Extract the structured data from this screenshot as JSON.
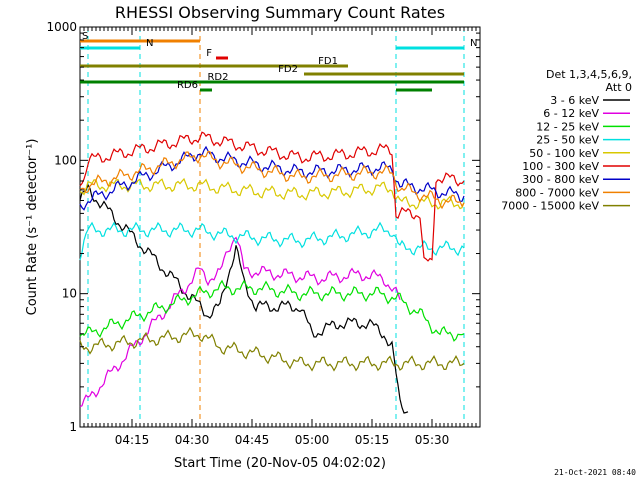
{
  "chart_data": {
    "type": "line",
    "title": "RHESSI Observing Summary Count Rates",
    "xlabel": "Start Time (20-Nov-05 04:02:02)",
    "ylabel": "Count Rate (s⁻¹ detector⁻¹)",
    "yscale": "log",
    "xlim_minutes": [
      0,
      100
    ],
    "ylim": [
      1,
      1000
    ],
    "x_ticks": [
      {
        "label": "04:15",
        "minute": 13
      },
      {
        "label": "04:30",
        "minute": 28
      },
      {
        "label": "04:45",
        "minute": 43
      },
      {
        "label": "05:00",
        "minute": 58
      },
      {
        "label": "05:15",
        "minute": 73
      },
      {
        "label": "05:30",
        "minute": 88
      }
    ],
    "y_ticks": [
      {
        "label": "1",
        "value": 1
      },
      {
        "label": "10",
        "value": 10
      },
      {
        "label": "100",
        "value": 100
      },
      {
        "label": "1000",
        "value": 1000
      }
    ],
    "legend": {
      "position": "right",
      "header": [
        "Det 1,3,4,5,6,9,",
        "Att 0"
      ],
      "entries": [
        {
          "label": "3 - 6 keV",
          "color": "#000000"
        },
        {
          "label": "6 - 12 keV",
          "color": "#e000e0"
        },
        {
          "label": "12 - 25 keV",
          "color": "#00e000"
        },
        {
          "label": "25 - 50 keV",
          "color": "#00e0e0"
        },
        {
          "label": "50 - 100 keV",
          "color": "#d8c800"
        },
        {
          "label": "100 - 300 keV",
          "color": "#e00000"
        },
        {
          "label": "300 - 800 keV",
          "color": "#0000c8"
        },
        {
          "label": "800 - 7000 keV",
          "color": "#f08000"
        },
        {
          "label": "7000 - 15000 keV",
          "color": "#808000"
        }
      ]
    },
    "state_bars": [
      {
        "label": "S",
        "color": "#f08000",
        "x_start": 0,
        "x_end": 30,
        "level": 1
      },
      {
        "label": "N",
        "color": "#00e0e0",
        "x_start": 0,
        "x_end": 15,
        "level": 2
      },
      {
        "label": "N",
        "color": "#00e0e0",
        "x_start": 79,
        "x_end": 96,
        "level": 2
      },
      {
        "label": "F",
        "color": "#e00000",
        "x_start": 34,
        "x_end": 37,
        "level": 3
      },
      {
        "label": "FD1",
        "color": "#808000",
        "x_start": 0,
        "x_end": 67,
        "level": 4
      },
      {
        "label": "FD2",
        "color": "#808000",
        "x_start": 56,
        "x_end": 96,
        "level": 5
      },
      {
        "label": "RD2",
        "color": "#008000",
        "x_start": 0,
        "x_end": 96,
        "level": 6
      },
      {
        "label": "RD6",
        "color": "#008000",
        "x_start": 30,
        "x_end": 33,
        "level": 7
      },
      {
        "label": "",
        "color": "#008000",
        "x_start": 79,
        "x_end": 88,
        "level": 7
      }
    ],
    "vlines": [
      {
        "minute": 2,
        "color": "#00e0e0",
        "style": "dashed"
      },
      {
        "minute": 15,
        "color": "#00e0e0",
        "style": "dashed"
      },
      {
        "minute": 30,
        "color": "#f08000",
        "style": "dashed"
      },
      {
        "minute": 79,
        "color": "#00e0e0",
        "style": "dashed"
      },
      {
        "minute": 96,
        "color": "#00e0e0",
        "style": "dashed"
      }
    ],
    "series": [
      {
        "name": "3 - 6 keV",
        "color": "#000000",
        "points": [
          [
            0,
            50
          ],
          [
            1,
            55
          ],
          [
            2,
            60
          ],
          [
            30,
            8
          ],
          [
            32,
            7
          ],
          [
            35,
            8
          ],
          [
            37,
            14
          ],
          [
            39,
            22
          ],
          [
            41,
            12
          ],
          [
            44,
            8
          ],
          [
            55,
            8
          ],
          [
            58,
            5
          ],
          [
            65,
            6
          ],
          [
            72,
            6
          ],
          [
            76,
            5
          ],
          [
            78,
            4
          ],
          [
            80,
            1.5
          ],
          [
            82,
            1.3
          ]
        ]
      },
      {
        "name": "6 - 12 keV",
        "color": "#e000e0",
        "points": [
          [
            0,
            1.5
          ],
          [
            1,
            1.5
          ],
          [
            2,
            1.6
          ],
          [
            30,
            15
          ],
          [
            32,
            13
          ],
          [
            35,
            14
          ],
          [
            37,
            22
          ],
          [
            39,
            28
          ],
          [
            41,
            15
          ],
          [
            50,
            14
          ],
          [
            60,
            13
          ],
          [
            70,
            14
          ],
          [
            76,
            13
          ],
          [
            78,
            11
          ],
          [
            80,
            9
          ]
        ]
      },
      {
        "name": "12 - 25 keV",
        "color": "#00e000",
        "points": [
          [
            0,
            5
          ],
          [
            1,
            5
          ],
          [
            2,
            5
          ],
          [
            30,
            10
          ],
          [
            35,
            11
          ],
          [
            45,
            11
          ],
          [
            55,
            10
          ],
          [
            65,
            10
          ],
          [
            75,
            10
          ],
          [
            80,
            9
          ],
          [
            85,
            7
          ],
          [
            90,
            5
          ],
          [
            96,
            5
          ]
        ]
      },
      {
        "name": "25 - 50 keV",
        "color": "#00e0e0",
        "points": [
          [
            0,
            20
          ],
          [
            1,
            25
          ],
          [
            2,
            30
          ],
          [
            30,
            30
          ],
          [
            35,
            28
          ],
          [
            45,
            26
          ],
          [
            55,
            25
          ],
          [
            65,
            27
          ],
          [
            75,
            30
          ],
          [
            78,
            30
          ],
          [
            80,
            22
          ],
          [
            90,
            22
          ],
          [
            96,
            22
          ]
        ]
      },
      {
        "name": "50 - 100 keV",
        "color": "#d8c800",
        "points": [
          [
            0,
            60
          ],
          [
            1,
            62
          ],
          [
            2,
            65
          ],
          [
            30,
            65
          ],
          [
            35,
            62
          ],
          [
            45,
            58
          ],
          [
            55,
            56
          ],
          [
            65,
            58
          ],
          [
            75,
            62
          ],
          [
            78,
            62
          ],
          [
            80,
            48
          ],
          [
            90,
            48
          ],
          [
            96,
            48
          ]
        ]
      },
      {
        "name": "100 - 300 keV",
        "color": "#e00000",
        "points": [
          [
            0,
            70
          ],
          [
            1,
            75
          ],
          [
            2,
            100
          ],
          [
            30,
            150
          ],
          [
            35,
            140
          ],
          [
            45,
            120
          ],
          [
            55,
            105
          ],
          [
            65,
            110
          ],
          [
            75,
            120
          ],
          [
            78,
            120
          ],
          [
            79,
            40
          ],
          [
            85,
            40
          ],
          [
            86,
            17
          ],
          [
            88,
            17
          ],
          [
            89,
            75
          ],
          [
            96,
            70
          ]
        ]
      },
      {
        "name": "300 - 800 keV",
        "color": "#0000c8",
        "points": [
          [
            0,
            45
          ],
          [
            1,
            48
          ],
          [
            2,
            50
          ],
          [
            30,
            115
          ],
          [
            35,
            105
          ],
          [
            45,
            92
          ],
          [
            55,
            82
          ],
          [
            65,
            84
          ],
          [
            75,
            88
          ],
          [
            78,
            86
          ],
          [
            80,
            66
          ],
          [
            90,
            58
          ],
          [
            96,
            54
          ]
        ]
      },
      {
        "name": "800 - 7000 keV",
        "color": "#f08000",
        "points": [
          [
            0,
            60
          ],
          [
            1,
            62
          ],
          [
            2,
            65
          ],
          [
            30,
            110
          ],
          [
            35,
            98
          ],
          [
            45,
            85
          ],
          [
            55,
            75
          ],
          [
            65,
            78
          ],
          [
            75,
            82
          ],
          [
            78,
            80
          ],
          [
            80,
            62
          ],
          [
            90,
            50
          ],
          [
            96,
            48
          ]
        ]
      },
      {
        "name": "7000 - 15000 keV",
        "color": "#808000",
        "points": [
          [
            0,
            4
          ],
          [
            1,
            4
          ],
          [
            2,
            4
          ],
          [
            30,
            5
          ],
          [
            35,
            4
          ],
          [
            45,
            3.5
          ],
          [
            55,
            3
          ],
          [
            60,
            3
          ],
          [
            65,
            3
          ],
          [
            72,
            3
          ],
          [
            78,
            3
          ],
          [
            80,
            3
          ],
          [
            90,
            3
          ],
          [
            96,
            3
          ]
        ]
      }
    ]
  },
  "footer": {
    "timestamp": "21-Oct-2021 08:40"
  }
}
